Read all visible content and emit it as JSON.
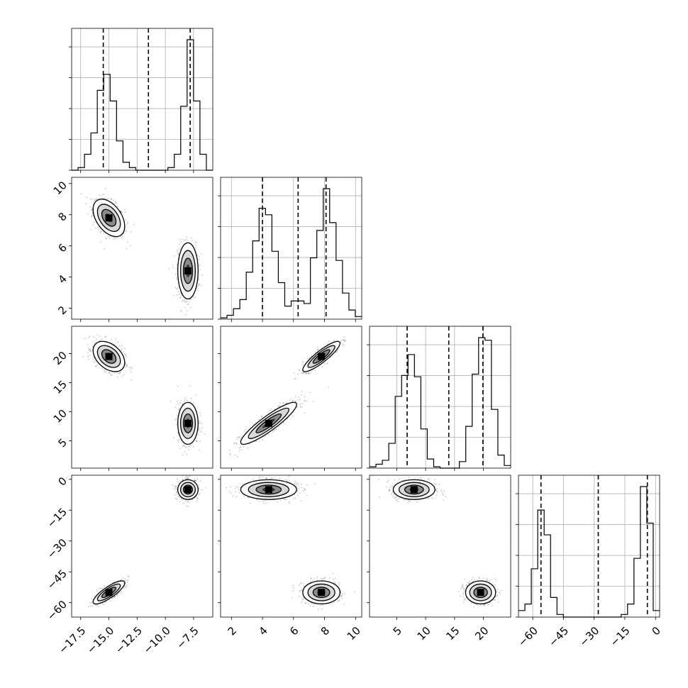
{
  "chart_data": {
    "type": "corner",
    "parameters": [
      {
        "ticks": [
          -17.5,
          -15.0,
          -12.5,
          -10.0,
          -7.5
        ],
        "tick_labels": [
          "−17.5",
          "−15.0",
          "−12.5",
          "−10.0",
          "−7.5"
        ],
        "range": [
          -18.3,
          -5.8
        ]
      },
      {
        "ticks": [
          2,
          4,
          6,
          8,
          10
        ],
        "tick_labels": [
          "2",
          "4",
          "6",
          "8",
          "10"
        ],
        "range": [
          1.3,
          10.4
        ]
      },
      {
        "ticks": [
          5,
          10,
          15,
          20
        ],
        "tick_labels": [
          "5",
          "10",
          "15",
          "20"
        ],
        "range": [
          0.3,
          24.7
        ]
      },
      {
        "ticks": [
          -60,
          -45,
          -30,
          -15,
          0
        ],
        "tick_labels": [
          "−60",
          "−45",
          "−30",
          "−15",
          "0"
        ],
        "range": [
          -67,
          2
        ]
      }
    ],
    "modes": [
      {
        "means": [
          -15.0,
          7.8,
          19.5,
          -55.0
        ],
        "sd": [
          0.7,
          0.6,
          1.3,
          2.8
        ]
      },
      {
        "means": [
          -8.0,
          4.4,
          8.0,
          -5.0
        ],
        "sd": [
          0.45,
          0.9,
          1.8,
          2.4
        ]
      }
    ],
    "correlations": [
      [
        {
          "params": [
            0,
            1
          ],
          "mode": 0,
          "rho": -0.45
        },
        {
          "params": [
            0,
            1
          ],
          "mode": 1,
          "rho": 0.0
        }
      ],
      [
        {
          "params": [
            0,
            2
          ],
          "mode": 0,
          "rho": -0.4
        },
        {
          "params": [
            0,
            2
          ],
          "mode": 1,
          "rho": 0.0
        }
      ],
      [
        {
          "params": [
            1,
            2
          ],
          "mode": 0,
          "rho": 0.88
        },
        {
          "params": [
            1,
            2
          ],
          "mode": 1,
          "rho": 0.9
        }
      ],
      [
        {
          "params": [
            0,
            3
          ],
          "mode": 0,
          "rho": 0.82
        },
        {
          "params": [
            0,
            3
          ],
          "mode": 1,
          "rho": 0.0
        }
      ],
      [
        {
          "params": [
            1,
            3
          ],
          "mode": 0,
          "rho": 0.0
        },
        {
          "params": [
            1,
            3
          ],
          "mode": 1,
          "rho": 0.0
        }
      ],
      [
        {
          "params": [
            2,
            3
          ],
          "mode": 0,
          "rho": 0.0
        },
        {
          "params": [
            2,
            3
          ],
          "mode": 1,
          "rho": 0.0
        }
      ]
    ],
    "quantiles": [
      [
        -15.5,
        -11.5,
        -7.8
      ],
      [
        4.0,
        6.3,
        8.1
      ],
      [
        6.8,
        14.0,
        19.9
      ],
      [
        -56.0,
        -28.0,
        -4.0
      ]
    ],
    "histograms": [
      {
        "edges_from": -18.3,
        "edges_to": -5.8,
        "counts": [
          0,
          0.02,
          0.12,
          0.28,
          0.6,
          0.72,
          0.52,
          0.22,
          0.06,
          0.02,
          0,
          0,
          0,
          0,
          0,
          0.02,
          0.12,
          0.48,
          0.98,
          0.52,
          0.12,
          0
        ]
      },
      {
        "edges_from": 1.3,
        "edges_to": 10.4,
        "counts": [
          0.01,
          0.03,
          0.08,
          0.15,
          0.36,
          0.6,
          0.85,
          0.8,
          0.52,
          0.28,
          0.1,
          0.14,
          0.14,
          0.12,
          0.47,
          0.68,
          1.0,
          0.74,
          0.45,
          0.2,
          0.07,
          0.02
        ]
      },
      {
        "edges_from": 0.3,
        "edges_to": 24.7,
        "counts": [
          0.01,
          0.03,
          0.06,
          0.19,
          0.55,
          0.71,
          0.87,
          0.7,
          0.3,
          0.07,
          0.01,
          0,
          0,
          0,
          0.05,
          0.32,
          0.72,
          1.0,
          0.98,
          0.45,
          0.1,
          0.02
        ]
      },
      {
        "edges_from": -67,
        "edges_to": 2,
        "counts": [
          0.05,
          0.1,
          0.37,
          0.82,
          0.63,
          0.15,
          0.02,
          0,
          0,
          0,
          0,
          0,
          0,
          0,
          0,
          0,
          0.02,
          0.1,
          0.45,
          1.0,
          0.72,
          0.05
        ]
      }
    ],
    "grid": true,
    "legend": "none"
  }
}
